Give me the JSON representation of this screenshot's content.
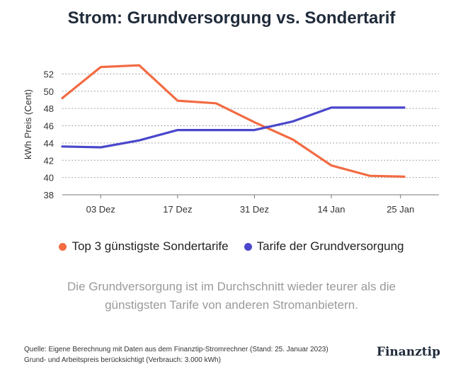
{
  "chart_data": {
    "type": "line",
    "title": "Strom: Grundversorgung vs. Sondertarif",
    "ylabel": "kWh Preis (Cent)",
    "xlabel": "",
    "ylim": [
      38,
      54
    ],
    "yticks": [
      38,
      40,
      42,
      44,
      46,
      48,
      50,
      52
    ],
    "x": [
      0,
      4,
      9,
      14,
      18,
      22,
      26,
      31,
      36,
      40,
      45,
      49
    ],
    "xlim": [
      0,
      49
    ],
    "xticks": [
      {
        "x": 5,
        "label": "03 Dez"
      },
      {
        "x": 15,
        "label": "17 Dez"
      },
      {
        "x": 25,
        "label": "31 Dez"
      },
      {
        "x": 35,
        "label": "14 Jan"
      },
      {
        "x": 44,
        "label": "25 Jan"
      }
    ],
    "series": [
      {
        "name": "Top 3 günstigste Sondertarife",
        "color": "#f26b43",
        "x": [
          0,
          5,
          10,
          15,
          20,
          25,
          30,
          35,
          40,
          44.5
        ],
        "values": [
          49.2,
          52.8,
          53.0,
          48.9,
          48.6,
          46.4,
          44.4,
          41.4,
          40.2,
          40.1
        ]
      },
      {
        "name": "Tarife der Grundversorgung",
        "color": "#4a47cc",
        "x": [
          0,
          5,
          10,
          15,
          20,
          25,
          30,
          35,
          40,
          44.5
        ],
        "values": [
          43.6,
          43.5,
          44.3,
          45.5,
          45.5,
          45.5,
          46.5,
          48.1,
          48.1,
          48.1
        ]
      }
    ],
    "legend_position": "bottom"
  },
  "note": "Die Grundversorgung ist im Durchschnitt wieder teurer als die günstigsten Tarife von anderen Stromanbietern.",
  "footer": {
    "source": "Quelle: Eigene Berechnung mit Daten aus dem Finanztip-Stromrechner (Stand: 25. Januar 2023)",
    "detail": "Grund- und Arbeitspreis berücksichtigt (Verbrauch: 3.000 kWh)"
  },
  "brand": "Finanztip"
}
